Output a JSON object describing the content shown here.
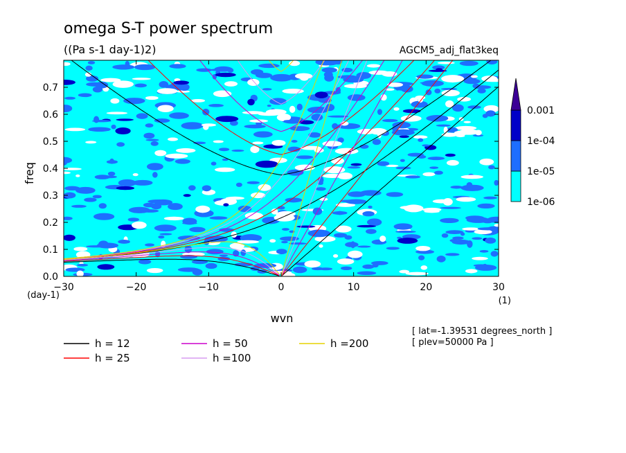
{
  "chart_data": {
    "type": "heatmap",
    "title": "omega S-T power spectrum",
    "subtitle": "((Pa s-1 day-1)2)",
    "run_label": "AGCM5_adj_flat3keq",
    "xlabel": "wvn",
    "xunit": "(1)",
    "ylabel": "freq",
    "yunit": "(day-1)",
    "xlim": [
      -30,
      30
    ],
    "ylim": [
      0,
      0.8
    ],
    "xticks": [
      -30,
      -20,
      -10,
      0,
      10,
      20,
      30
    ],
    "xtick_labels": [
      "−30",
      "−20",
      "−10",
      "0",
      "10",
      "20",
      "30"
    ],
    "yticks": [
      0,
      0.1,
      0.2,
      0.3,
      0.4,
      0.5,
      0.6,
      0.7
    ],
    "ytick_labels": [
      "0.0",
      "0.1",
      "0.2",
      "0.3",
      "0.4",
      "0.5",
      "0.6",
      "0.7"
    ],
    "colorbar": {
      "levels": [
        "1e-06",
        "1e-05",
        "1e-04",
        "0.001"
      ],
      "colors": [
        "#00ffff",
        "#1e6eff",
        "#0000c8",
        "#3c0096"
      ],
      "below_color": "#ffffff"
    },
    "series": [
      {
        "name": "h = 12",
        "h": 12,
        "color": "#000000"
      },
      {
        "name": "h = 25",
        "h": 25,
        "color": "#ff0000"
      },
      {
        "name": "h = 50",
        "h": 50,
        "color": "#cc00cc"
      },
      {
        "name": "h =100",
        "h": 100,
        "color": "#d79cf0"
      },
      {
        "name": "h =200",
        "h": 200,
        "color": "#e6d200"
      }
    ],
    "annotations": [
      "[ lat=-1.39531 degrees_north ]",
      "[ plev=50000 Pa ]"
    ]
  }
}
